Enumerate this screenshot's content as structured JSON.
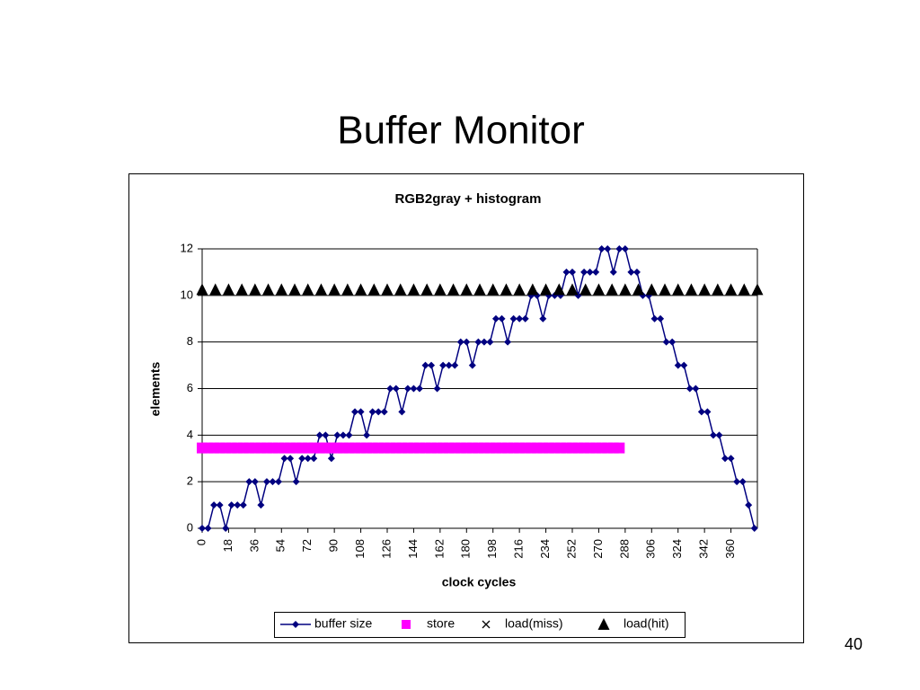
{
  "slide": {
    "title": "Buffer Monitor",
    "page_number": "40"
  },
  "chart_data": {
    "type": "line",
    "title": "RGB2gray + histogram",
    "x_label": "clock cycles",
    "y_label": "elements",
    "xlim": [
      0,
      378
    ],
    "ylim": [
      0,
      12
    ],
    "xticks": [
      0,
      18,
      36,
      54,
      72,
      90,
      108,
      126,
      144,
      162,
      180,
      198,
      216,
      234,
      252,
      270,
      288,
      306,
      324,
      342,
      360
    ],
    "yticks": [
      0,
      2,
      4,
      6,
      8,
      10,
      12
    ],
    "grid": true,
    "legend": "bottom",
    "series": [
      {
        "name": "buffer size",
        "color": "#000080",
        "marker": "diamond",
        "line": true,
        "x": [
          0,
          4,
          8,
          12,
          16,
          20,
          24,
          28,
          32,
          36,
          40,
          44,
          48,
          52,
          56,
          60,
          64,
          68,
          72,
          76,
          80,
          84,
          88,
          92,
          96,
          100,
          104,
          108,
          112,
          116,
          120,
          124,
          128,
          132,
          136,
          140,
          144,
          148,
          152,
          156,
          160,
          164,
          168,
          172,
          176,
          180,
          184,
          188,
          192,
          196,
          200,
          204,
          208,
          212,
          216,
          220,
          224,
          228,
          232,
          236,
          240,
          244,
          248,
          252,
          256,
          260,
          264,
          268,
          272,
          276,
          280,
          284,
          288,
          292,
          296,
          300,
          304,
          308,
          312,
          316,
          320,
          324,
          328,
          332,
          336,
          340,
          344,
          348,
          352,
          356,
          360,
          364,
          368,
          372,
          376
        ],
        "values": [
          0,
          0,
          1,
          1,
          0,
          1,
          1,
          1,
          2,
          2,
          1,
          2,
          2,
          2,
          3,
          3,
          2,
          3,
          3,
          3,
          4,
          4,
          3,
          4,
          4,
          4,
          5,
          5,
          4,
          5,
          5,
          5,
          6,
          6,
          5,
          6,
          6,
          6,
          7,
          7,
          6,
          7,
          7,
          7,
          8,
          8,
          7,
          8,
          8,
          8,
          9,
          9,
          8,
          9,
          9,
          9,
          10,
          10,
          9,
          10,
          10,
          10,
          11,
          11,
          10,
          11,
          11,
          11,
          12,
          12,
          11,
          12,
          12,
          11,
          11,
          10,
          10,
          9,
          9,
          8,
          8,
          7,
          7,
          6,
          6,
          5,
          5,
          4,
          4,
          3,
          3,
          2,
          2,
          1,
          0
        ]
      },
      {
        "name": "store",
        "color": "#ff00ff",
        "marker": "square",
        "line": false,
        "x": [
          0,
          4,
          8,
          12,
          16,
          20,
          24,
          28,
          32,
          36,
          40,
          44,
          48,
          52,
          56,
          60,
          64,
          68,
          72,
          76,
          80,
          84,
          88,
          92,
          96,
          100,
          104,
          108,
          112,
          116,
          120,
          124,
          128,
          132,
          136,
          140,
          144,
          148,
          152,
          156,
          160,
          164,
          168,
          172,
          176,
          180,
          184,
          188,
          192,
          196,
          200,
          204,
          208,
          212,
          216,
          220,
          224,
          228,
          232,
          236,
          240,
          244,
          248,
          252,
          256,
          260,
          264,
          268,
          272,
          276,
          280,
          284
        ],
        "values": [
          3.45,
          3.45,
          3.45,
          3.45,
          3.45,
          3.45,
          3.45,
          3.45,
          3.45,
          3.45,
          3.45,
          3.45,
          3.45,
          3.45,
          3.45,
          3.45,
          3.45,
          3.45,
          3.45,
          3.45,
          3.45,
          3.45,
          3.45,
          3.45,
          3.45,
          3.45,
          3.45,
          3.45,
          3.45,
          3.45,
          3.45,
          3.45,
          3.45,
          3.45,
          3.45,
          3.45,
          3.45,
          3.45,
          3.45,
          3.45,
          3.45,
          3.45,
          3.45,
          3.45,
          3.45,
          3.45,
          3.45,
          3.45,
          3.45,
          3.45,
          3.45,
          3.45,
          3.45,
          3.45,
          3.45,
          3.45,
          3.45,
          3.45,
          3.45,
          3.45,
          3.45,
          3.45,
          3.45,
          3.45,
          3.45,
          3.45,
          3.45,
          3.45,
          3.45,
          3.45,
          3.45,
          3.45
        ]
      },
      {
        "name": "load(miss)",
        "color": "#000000",
        "marker": "x",
        "line": false,
        "x": [],
        "values": []
      },
      {
        "name": "load(hit)",
        "color": "#000000",
        "marker": "triangle",
        "line": false,
        "x": [
          0,
          9,
          18,
          27,
          36,
          45,
          54,
          63,
          72,
          81,
          90,
          99,
          108,
          117,
          126,
          135,
          144,
          153,
          162,
          171,
          180,
          189,
          198,
          207,
          216,
          225,
          234,
          243,
          252,
          261,
          270,
          279,
          288,
          297,
          306,
          315,
          324,
          333,
          342,
          351,
          360,
          369,
          378
        ],
        "values": [
          10.25,
          10.25,
          10.25,
          10.25,
          10.25,
          10.25,
          10.25,
          10.25,
          10.25,
          10.25,
          10.25,
          10.25,
          10.25,
          10.25,
          10.25,
          10.25,
          10.25,
          10.25,
          10.25,
          10.25,
          10.25,
          10.25,
          10.25,
          10.25,
          10.25,
          10.25,
          10.25,
          10.25,
          10.25,
          10.25,
          10.25,
          10.25,
          10.25,
          10.25,
          10.25,
          10.25,
          10.25,
          10.25,
          10.25,
          10.25,
          10.25,
          10.25,
          10.25
        ]
      }
    ]
  }
}
